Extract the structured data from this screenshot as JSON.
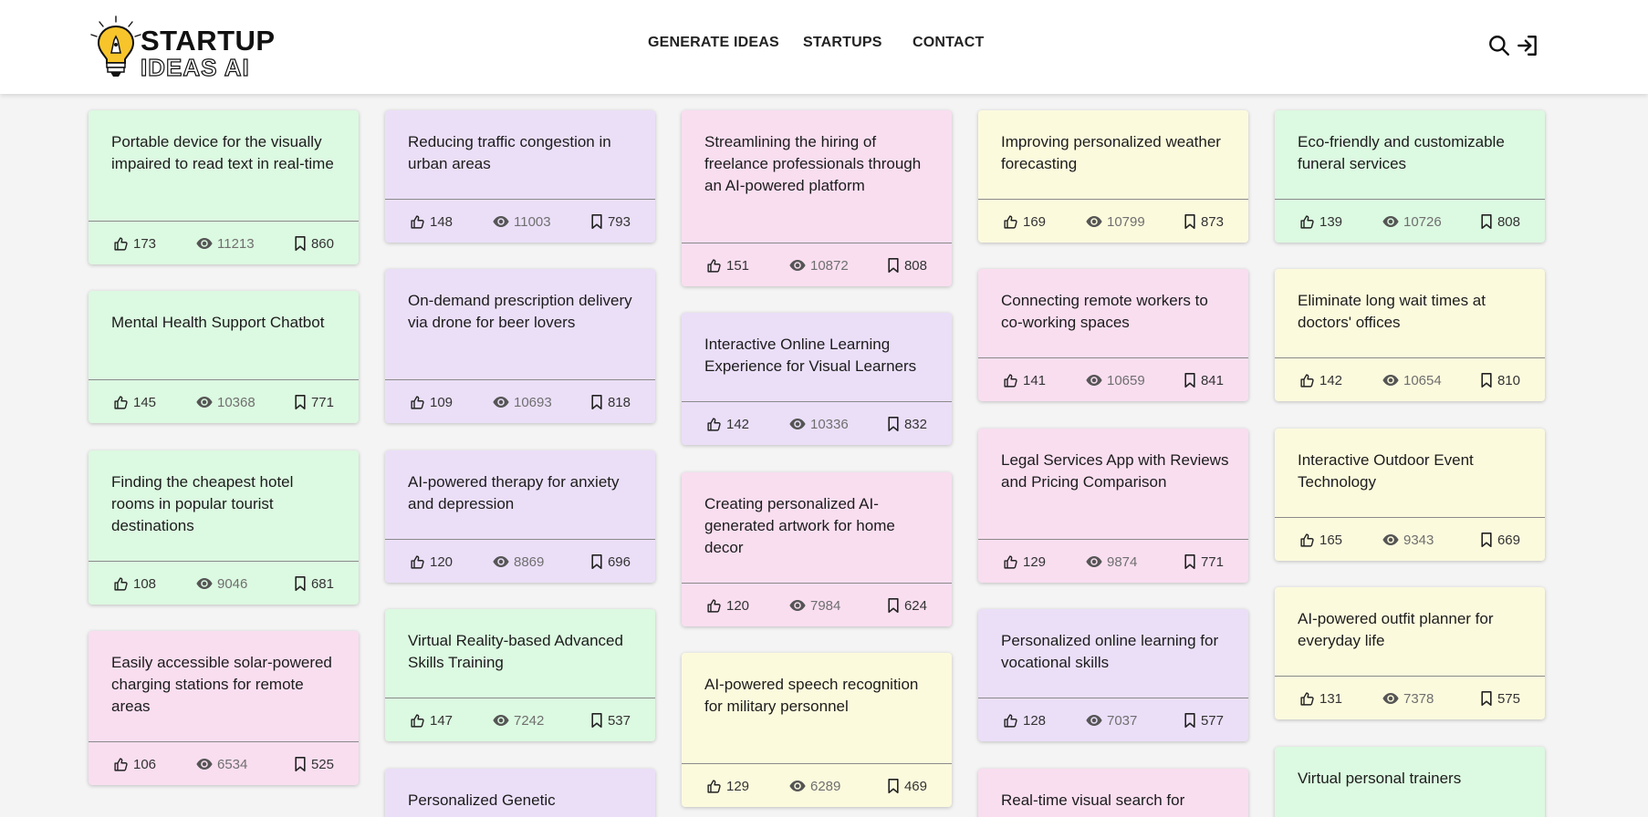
{
  "brand": {
    "line1": "STARTUP",
    "line2": "IDEAS AI"
  },
  "nav": {
    "generate": "GENERATE IDEAS",
    "startups": "STARTUPS",
    "contact": "CONTACT"
  },
  "colors": {
    "green": "#dcf9e1",
    "purple": "#ebdff8",
    "pink": "#f9def0",
    "yellow": "#fcfadd"
  },
  "icons": {
    "like": "thumbs-up-icon",
    "views": "eye-icon",
    "saves": "bookmark-icon",
    "search": "search-icon",
    "login": "login-icon"
  },
  "cards": [
    {
      "title": "Portable device for the visually impaired to read text in real-time",
      "likes": "173",
      "views": "11213",
      "saves": "860",
      "color": "green"
    },
    {
      "title": "Mental Health Support Chatbot",
      "likes": "145",
      "views": "10368",
      "saves": "771",
      "color": "green"
    },
    {
      "title": "Finding the cheapest hotel rooms in popular tourist destinations",
      "likes": "108",
      "views": "9046",
      "saves": "681",
      "color": "green"
    },
    {
      "title": "Easily accessible solar-powered charging stations for remote areas",
      "likes": "106",
      "views": "6534",
      "saves": "525",
      "color": "pink"
    },
    {
      "title": "Reducing traffic congestion in urban areas",
      "likes": "148",
      "views": "11003",
      "saves": "793",
      "color": "purple"
    },
    {
      "title": "On-demand prescription delivery via drone for beer lovers",
      "likes": "109",
      "views": "10693",
      "saves": "818",
      "color": "purple"
    },
    {
      "title": "AI-powered therapy for anxiety and depression",
      "likes": "120",
      "views": "8869",
      "saves": "696",
      "color": "purple"
    },
    {
      "title": "Virtual Reality-based Advanced Skills Training",
      "likes": "147",
      "views": "7242",
      "saves": "537",
      "color": "green"
    },
    {
      "title": "Personalized Genetic",
      "color": "purple"
    },
    {
      "title": "Streamlining the hiring of freelance professionals through an AI-powered platform",
      "likes": "151",
      "views": "10872",
      "saves": "808",
      "color": "pink"
    },
    {
      "title": "Interactive Online Learning Experience for Visual Learners",
      "likes": "142",
      "views": "10336",
      "saves": "832",
      "color": "purple"
    },
    {
      "title": "Creating personalized AI-generated artwork for home decor",
      "likes": "120",
      "views": "7984",
      "saves": "624",
      "color": "pink"
    },
    {
      "title": "AI-powered speech recognition for military personnel",
      "likes": "129",
      "views": "6289",
      "saves": "469",
      "color": "yellow"
    },
    {
      "title": "Improving personalized weather forecasting",
      "likes": "169",
      "views": "10799",
      "saves": "873",
      "color": "yellow"
    },
    {
      "title": "Connecting remote workers to co-working spaces",
      "likes": "141",
      "views": "10659",
      "saves": "841",
      "color": "pink"
    },
    {
      "title": "Legal Services App with Reviews and Pricing Comparison",
      "likes": "129",
      "views": "9874",
      "saves": "771",
      "color": "pink"
    },
    {
      "title": "Personalized online learning for vocational skills",
      "likes": "128",
      "views": "7037",
      "saves": "577",
      "color": "purple"
    },
    {
      "title": "Real-time visual search for",
      "color": "pink"
    },
    {
      "title": "Eco-friendly and customizable funeral services",
      "likes": "139",
      "views": "10726",
      "saves": "808",
      "color": "green"
    },
    {
      "title": "Eliminate long wait times at doctors' offices",
      "likes": "142",
      "views": "10654",
      "saves": "810",
      "color": "yellow"
    },
    {
      "title": "Interactive Outdoor Event Technology",
      "likes": "165",
      "views": "9343",
      "saves": "669",
      "color": "yellow"
    },
    {
      "title": "AI-powered outfit planner for everyday life",
      "likes": "131",
      "views": "7378",
      "saves": "575",
      "color": "yellow"
    },
    {
      "title": "Virtual personal trainers",
      "color": "green"
    }
  ]
}
